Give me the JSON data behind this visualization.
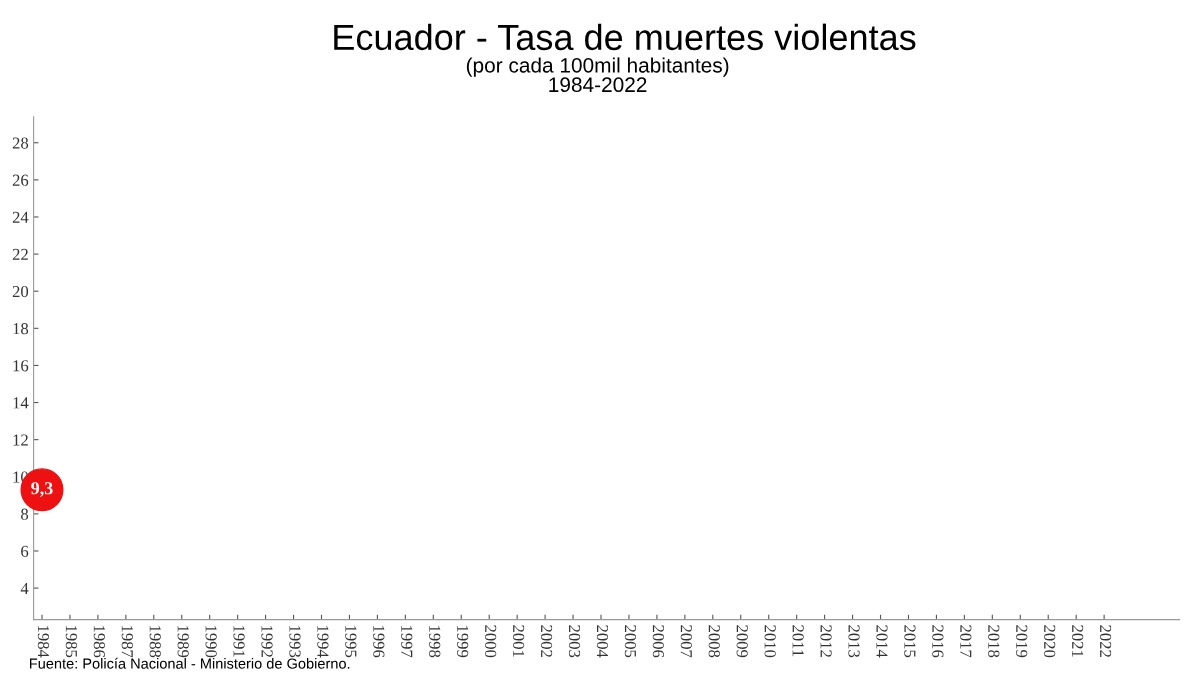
{
  "chart_data": {
    "type": "line",
    "title": "Ecuador - Tasa de muertes violentas",
    "subtitle": "(por cada 100mil habitantes)\n1984-2022",
    "categories": [
      "1984",
      "1985",
      "1986",
      "1987",
      "1988",
      "1989",
      "1990",
      "1991",
      "1992",
      "1993",
      "1994",
      "1995",
      "1996",
      "1997",
      "1998",
      "1999",
      "2000",
      "2001",
      "2002",
      "2003",
      "2004",
      "2005",
      "2006",
      "2007",
      "2008",
      "2009",
      "2010",
      "2011",
      "2012",
      "2013",
      "2014",
      "2015",
      "2016",
      "2017",
      "2018",
      "2019",
      "2020",
      "2021",
      "2022"
    ],
    "series": [
      {
        "color": "#ee1111",
        "values": [
          9.3,
          null,
          null,
          null,
          null,
          null,
          null,
          null,
          null,
          null,
          null,
          null,
          null,
          null,
          null,
          null,
          null,
          null,
          null,
          null,
          null,
          null,
          null,
          null,
          null,
          null,
          null,
          null,
          null,
          null,
          null,
          null,
          null,
          null,
          null,
          null,
          null,
          null,
          null
        ],
        "value_labels": [
          "9,3",
          null,
          null,
          null,
          null,
          null,
          null,
          null,
          null,
          null,
          null,
          null,
          null,
          null,
          null,
          null,
          null,
          null,
          null,
          null,
          null,
          null,
          null,
          null,
          null,
          null,
          null,
          null,
          null,
          null,
          null,
          null,
          null,
          null,
          null,
          null,
          null,
          null,
          null
        ]
      }
    ],
    "ylim": [
      2.3,
      29.4
    ],
    "yticks": [
      4,
      6,
      8,
      10,
      12,
      14,
      16,
      18,
      20,
      22,
      24,
      26,
      28
    ],
    "marker": "circle",
    "grid": false,
    "legend": false,
    "annotations": [
      "Fuente: Policía Nacional - Ministerio de Gobierno."
    ]
  }
}
